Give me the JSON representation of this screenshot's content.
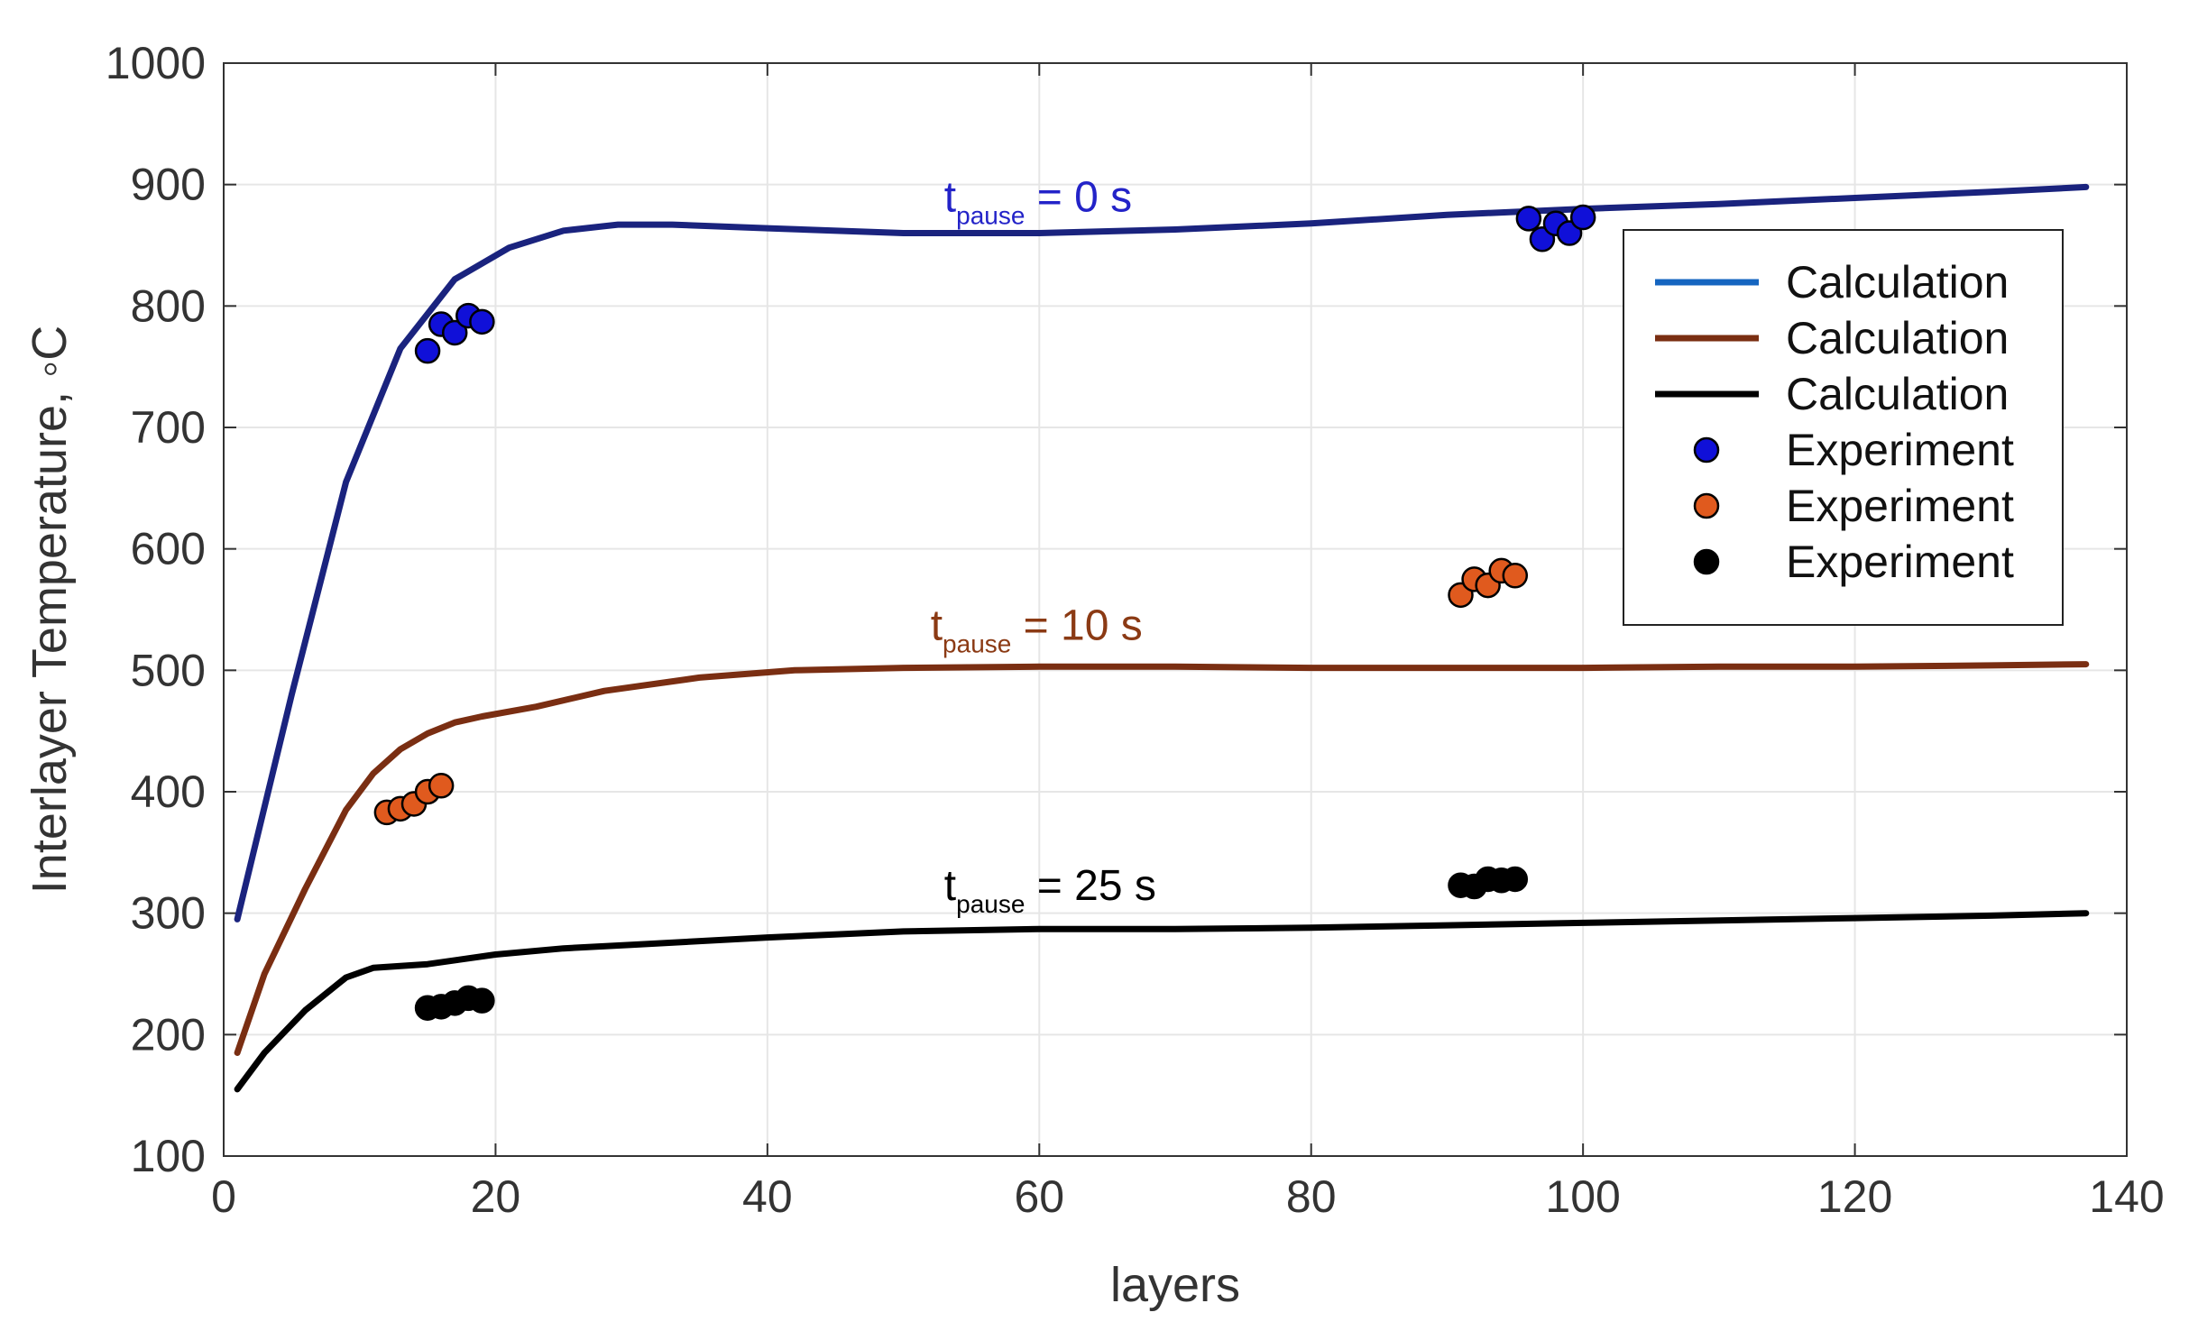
{
  "chart_data": {
    "type": "line",
    "title": "",
    "xlabel": "layers",
    "ylabel": "Interlayer Temperature, ◦C",
    "xlim": [
      0,
      140
    ],
    "ylim": [
      100,
      1000
    ],
    "xticks": [
      0,
      20,
      40,
      60,
      80,
      100,
      120,
      140
    ],
    "yticks": [
      100,
      200,
      300,
      400,
      500,
      600,
      700,
      800,
      900,
      1000
    ],
    "grid": true,
    "legend_position": "top-right",
    "series": [
      {
        "name": "Calculation",
        "kind": "line",
        "color": "#1a237e",
        "legend_color": "#1565c0",
        "x": [
          1,
          5,
          9,
          13,
          17,
          21,
          25,
          29,
          33,
          40,
          50,
          60,
          70,
          80,
          90,
          100,
          110,
          120,
          130,
          137
        ],
        "y": [
          295,
          480,
          655,
          765,
          822,
          848,
          862,
          867,
          867,
          864,
          860,
          860,
          863,
          868,
          875,
          880,
          884,
          889,
          894,
          898
        ]
      },
      {
        "name": "Calculation",
        "kind": "line",
        "color": "#7a2e12",
        "legend_color": "#7a2e12",
        "x": [
          1,
          3,
          6,
          9,
          11,
          13,
          15,
          17,
          19,
          23,
          28,
          35,
          42,
          50,
          60,
          70,
          80,
          90,
          100,
          110,
          120,
          130,
          137
        ],
        "y": [
          185,
          250,
          320,
          385,
          415,
          435,
          448,
          457,
          462,
          470,
          483,
          494,
          500,
          502,
          503,
          503,
          502,
          502,
          502,
          503,
          503,
          504,
          505
        ]
      },
      {
        "name": "Calculation",
        "kind": "line",
        "color": "#000000",
        "legend_color": "#000000",
        "x": [
          1,
          3,
          6,
          9,
          11,
          15,
          20,
          25,
          30,
          40,
          50,
          60,
          70,
          80,
          90,
          100,
          110,
          120,
          130,
          137
        ],
        "y": [
          155,
          185,
          220,
          247,
          255,
          258,
          266,
          271,
          274,
          280,
          285,
          287,
          287,
          288,
          290,
          292,
          294,
          296,
          298,
          300
        ]
      },
      {
        "name": "Experiment",
        "kind": "scatter",
        "color": "#1010d8",
        "x": [
          15,
          16,
          17,
          18,
          19,
          96,
          97,
          98,
          99,
          100
        ],
        "y": [
          763,
          785,
          778,
          792,
          787,
          872,
          855,
          868,
          860,
          873
        ]
      },
      {
        "name": "Experiment",
        "kind": "scatter",
        "color": "#e05a1e",
        "x": [
          12,
          13,
          14,
          15,
          16,
          91,
          92,
          93,
          94,
          95
        ],
        "y": [
          383,
          386,
          390,
          400,
          405,
          562,
          575,
          570,
          582,
          578
        ]
      },
      {
        "name": "Experiment",
        "kind": "scatter",
        "color": "#000000",
        "x": [
          15,
          16,
          17,
          18,
          19,
          91,
          92,
          93,
          94,
          95
        ],
        "y": [
          222,
          223,
          226,
          230,
          228,
          323,
          322,
          328,
          327,
          328
        ]
      }
    ],
    "annotations": [
      {
        "main": "t",
        "sub": "pause",
        "rest": " = 0 s",
        "color": "#2323c8",
        "x": 53,
        "y": 878
      },
      {
        "main": "t",
        "sub": "pause",
        "rest": " = 10 s",
        "color": "#8b3a14",
        "x": 52,
        "y": 525
      },
      {
        "main": "t",
        "sub": "pause",
        "rest": " = 25 s",
        "color": "#000000",
        "x": 53,
        "y": 311
      }
    ]
  }
}
